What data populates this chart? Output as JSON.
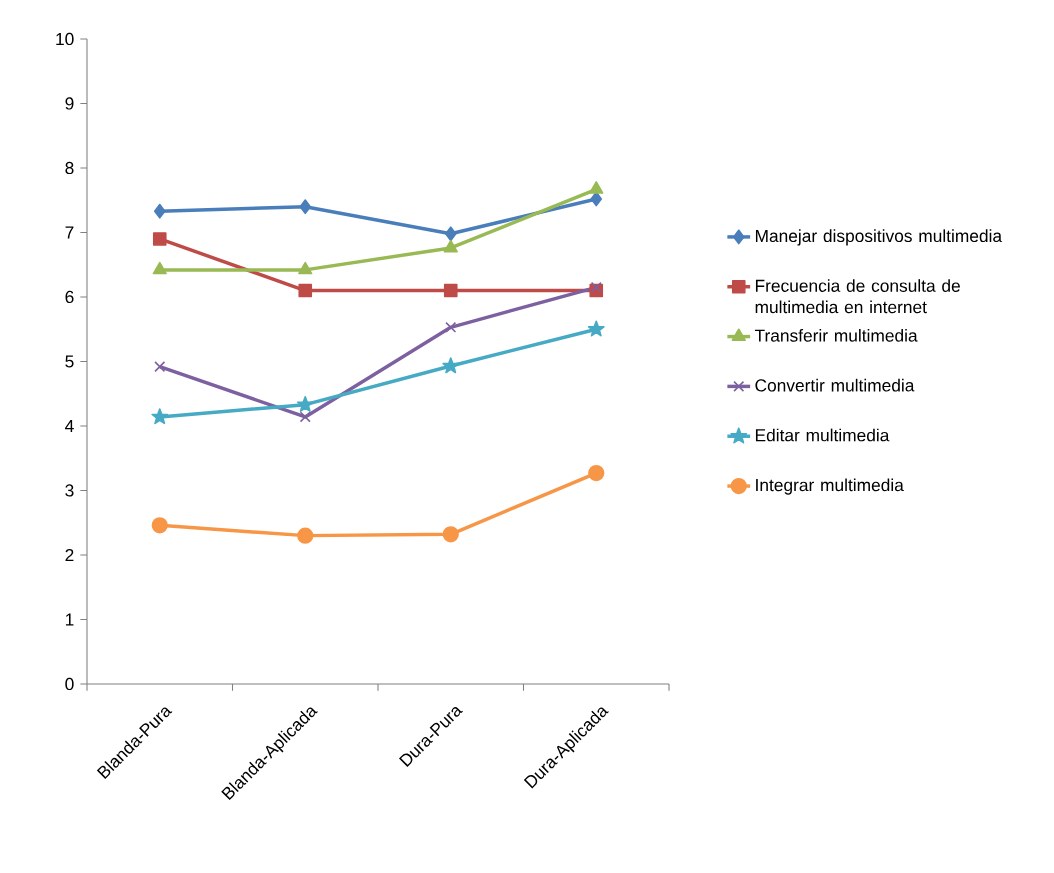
{
  "chart_data": {
    "type": "line",
    "categories": [
      "Blanda-Pura",
      "Blanda-Aplicada",
      "Dura-Pura",
      "Dura-Aplicada"
    ],
    "ylim": [
      0,
      10
    ],
    "yticks": [
      0,
      1,
      2,
      3,
      4,
      5,
      6,
      7,
      8,
      9,
      10
    ],
    "legend": "right",
    "grid": false,
    "series": [
      {
        "name": "Manejar dispositivos multimedia",
        "color": "#4a7ebb",
        "marker": "diamond",
        "values": [
          7.33,
          7.4,
          6.98,
          7.52
        ]
      },
      {
        "name": "Frecuencia de consulta de multimedia en internet",
        "color": "#be4b48",
        "marker": "square",
        "values": [
          6.9,
          6.1,
          6.1,
          6.1
        ]
      },
      {
        "name": "Transferir  multimedia",
        "color": "#98b954",
        "marker": "triangle",
        "values": [
          6.42,
          6.42,
          6.76,
          7.67
        ]
      },
      {
        "name": "Convertir multimedia",
        "color": "#7d60a0",
        "marker": "cross",
        "values": [
          4.92,
          4.14,
          5.53,
          6.15
        ]
      },
      {
        "name": "Editar multimedia",
        "color": "#46aac5",
        "marker": "star",
        "values": [
          4.14,
          4.33,
          4.93,
          5.5
        ]
      },
      {
        "name": "Integrar  multimedia",
        "color": "#f79646",
        "marker": "circle",
        "values": [
          2.46,
          2.3,
          2.32,
          3.27
        ]
      }
    ]
  }
}
